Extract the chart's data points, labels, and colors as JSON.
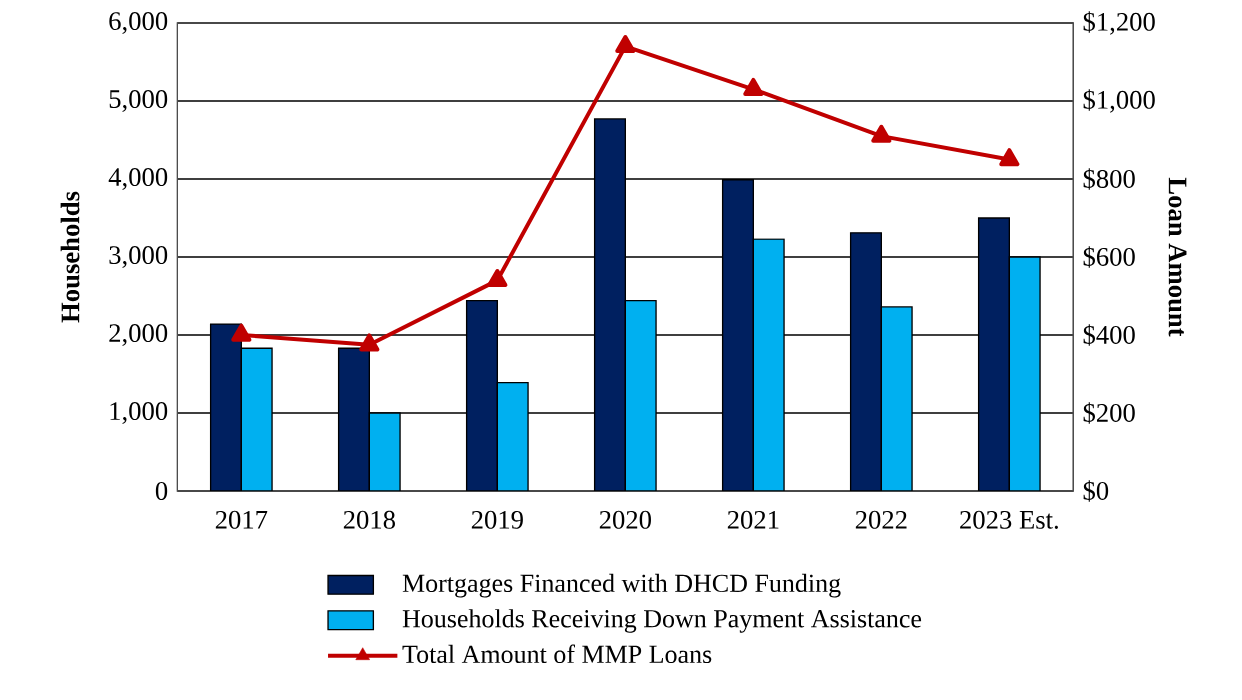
{
  "chart_data": {
    "type": "bar",
    "categories": [
      "2017",
      "2018",
      "2019",
      "2020",
      "2021",
      "2022",
      "2023 Est."
    ],
    "ylabel": "Households",
    "y2label": "Loan Amount",
    "ylim": [
      0,
      6000
    ],
    "yticks": [
      {
        "value": 0,
        "label": "0"
      },
      {
        "value": 1000,
        "label": "1,000"
      },
      {
        "value": 2000,
        "label": "2,000"
      },
      {
        "value": 3000,
        "label": "3,000"
      },
      {
        "value": 4000,
        "label": "4,000"
      },
      {
        "value": 5000,
        "label": "5,000"
      },
      {
        "value": 6000,
        "label": "6,000"
      }
    ],
    "y2lim": [
      0,
      1200
    ],
    "y2ticks": [
      {
        "value": 0,
        "label": "$0"
      },
      {
        "value": 200,
        "label": "$200"
      },
      {
        "value": 400,
        "label": "$400"
      },
      {
        "value": 600,
        "label": "$600"
      },
      {
        "value": 800,
        "label": "$800"
      },
      {
        "value": 1000,
        "label": "$1,000"
      },
      {
        "value": 1200,
        "label": "$1,200"
      }
    ],
    "grid": "y",
    "legend": "bottom",
    "series": [
      {
        "name": "Mortgages Financed with DHCD Funding",
        "color": "#002060",
        "values": [
          2140,
          1830,
          2440,
          4770,
          3990,
          3310,
          3500
        ]
      },
      {
        "name": "Households Receiving Down Payment Assistance",
        "color": "#00b0f0",
        "values": [
          1830,
          1000,
          1390,
          2440,
          3230,
          2360,
          3000
        ]
      },
      {
        "name": "Total Amount of MMP Loans",
        "type": "line",
        "axis": "y2",
        "marker": "triangle",
        "color": "#c00000",
        "values": [
          400,
          375,
          540,
          1140,
          1030,
          910,
          850
        ]
      }
    ]
  }
}
